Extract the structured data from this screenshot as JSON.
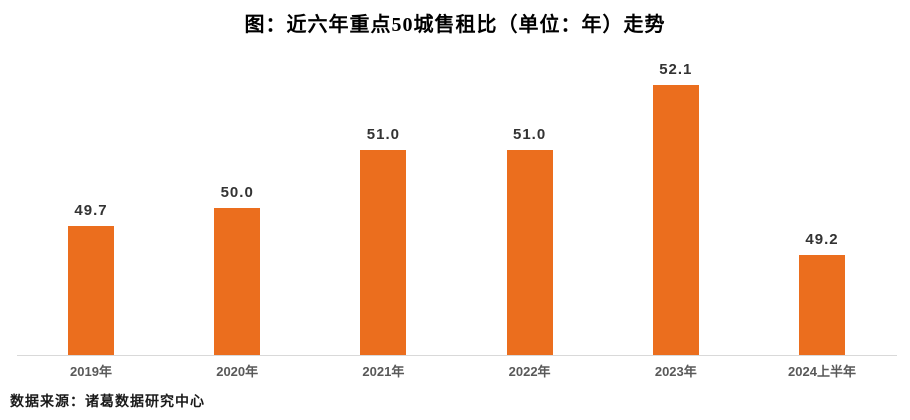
{
  "title": "图：近六年重点50城售租比（单位：年）走势",
  "source_note": "数据来源：诸葛数据研究中心",
  "colors": {
    "bar": "#eb6e1e",
    "axis_line": "#d9d9d9",
    "value_label": "#333333",
    "category_label": "#595959",
    "title": "#000000"
  },
  "chart_data": {
    "type": "bar",
    "title": "图：近六年重点50城售租比（单位：年）走势",
    "categories": [
      "2019年",
      "2020年",
      "2021年",
      "2022年",
      "2023年",
      "2024上半年"
    ],
    "values": [
      49.7,
      50.0,
      51.0,
      51.0,
      52.1,
      49.2
    ],
    "value_labels": [
      "49.7",
      "50.0",
      "51.0",
      "51.0",
      "52.1",
      "49.2"
    ],
    "xlabel": "",
    "ylabel": "",
    "unit": "年",
    "ylim": [
      47.5,
      52.5
    ],
    "grid": false,
    "legend": "none",
    "bar_color": "#eb6e1e",
    "data_label_position": "above-bar",
    "source": "数据来源：诸葛数据研究中心"
  }
}
